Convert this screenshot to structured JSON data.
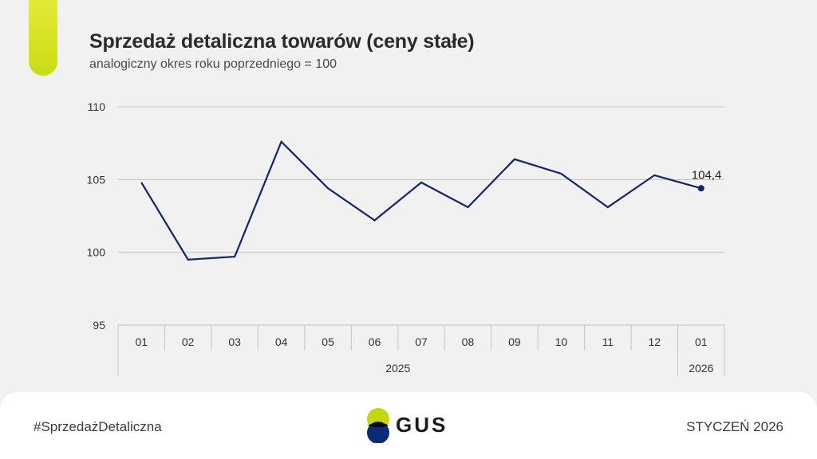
{
  "header": {
    "title": "Sprzedaż detaliczna towarów (ceny stałe)",
    "subtitle": "analogiczny okres roku poprzedniego = 100"
  },
  "footer": {
    "hashtag": "#SprzedażDetaliczna",
    "logo_text": "GUS",
    "date": "STYCZEŃ 2026"
  },
  "colors": {
    "line": "#13246b",
    "accent": "#d3e21f",
    "logo_blue": "#0b2a78",
    "logo_green": "#c3d80e"
  },
  "chart_data": {
    "type": "line",
    "categories": [
      "01",
      "02",
      "03",
      "04",
      "05",
      "06",
      "07",
      "08",
      "09",
      "10",
      "11",
      "12",
      "01"
    ],
    "year_groups": [
      {
        "label": "2025",
        "count": 12
      },
      {
        "label": "2026",
        "count": 1
      }
    ],
    "series": [
      {
        "values": [
          104.8,
          99.5,
          99.7,
          107.6,
          104.4,
          102.2,
          104.8,
          103.1,
          106.4,
          105.4,
          103.1,
          105.3,
          104.4
        ]
      }
    ],
    "yticks": [
      "95",
      "100",
      "105",
      "110"
    ],
    "ylim": [
      95,
      110
    ],
    "last_value_label": "104,4",
    "grid": true,
    "legend": "none"
  }
}
